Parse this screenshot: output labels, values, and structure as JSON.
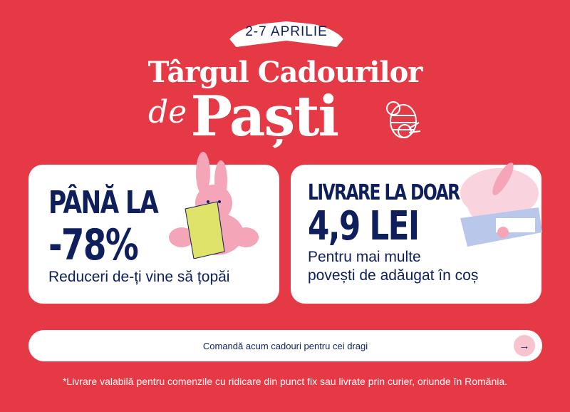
{
  "header": {
    "date_ribbon": "2-7 APRILIE",
    "title_line1": "Târgul Cadourilor",
    "title_de": "de",
    "title_pasti": "Paști"
  },
  "cards": [
    {
      "headline1": "PÂNĂ LA",
      "headline2": "-78%",
      "subtitle": "Reduceri de-ți vine să țopăi"
    },
    {
      "headline1": "LIVRARE LA DOAR",
      "headline2": "4,9 LEI",
      "subtitle1": "Pentru mai multe",
      "subtitle2": "povești de adăugat în coș"
    }
  ],
  "cta": {
    "label": "Comandă acum cadouri pentru cei dragi",
    "icon": "arrow-right-icon"
  },
  "footnote": "*Livrare valabilă pentru comenzile cu ridicare din punct fix sau livrate prin curier, oriunde în România.",
  "colors": {
    "background": "#e63946",
    "navy": "#0f1f5c",
    "pink": "#f4a6b8"
  }
}
